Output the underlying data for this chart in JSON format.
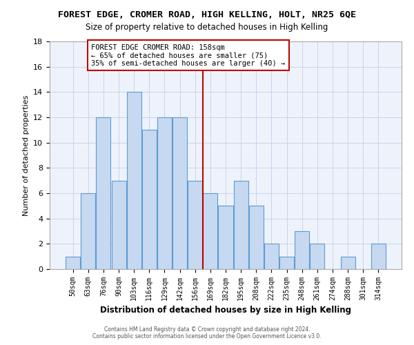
{
  "title": "FOREST EDGE, CROMER ROAD, HIGH KELLING, HOLT, NR25 6QE",
  "subtitle": "Size of property relative to detached houses in High Kelling",
  "xlabel": "Distribution of detached houses by size in High Kelling",
  "ylabel": "Number of detached properties",
  "bar_labels": [
    "50sqm",
    "63sqm",
    "76sqm",
    "90sqm",
    "103sqm",
    "116sqm",
    "129sqm",
    "142sqm",
    "156sqm",
    "169sqm",
    "182sqm",
    "195sqm",
    "208sqm",
    "222sqm",
    "235sqm",
    "248sqm",
    "261sqm",
    "274sqm",
    "288sqm",
    "301sqm",
    "314sqm"
  ],
  "bar_values": [
    1,
    6,
    12,
    7,
    14,
    11,
    12,
    12,
    7,
    6,
    5,
    7,
    5,
    2,
    1,
    3,
    2,
    0,
    1,
    0,
    2
  ],
  "bar_color": "#c6d9f0",
  "bar_edge_color": "#5b9bd5",
  "reference_line_color": "#c00000",
  "annotation_line1": "FOREST EDGE CROMER ROAD: 158sqm",
  "annotation_line2": "← 65% of detached houses are smaller (75)",
  "annotation_line3": "35% of semi-detached houses are larger (40) →",
  "annotation_box_color": "#ffffff",
  "annotation_box_edge_color": "#c00000",
  "ylim": [
    0,
    18
  ],
  "yticks": [
    0,
    2,
    4,
    6,
    8,
    10,
    12,
    14,
    16,
    18
  ],
  "footer1": "Contains HM Land Registry data © Crown copyright and database right 2024.",
  "footer2": "Contains public sector information licensed under the Open Government Licence v3.0.",
  "bg_color": "#eef3fb"
}
